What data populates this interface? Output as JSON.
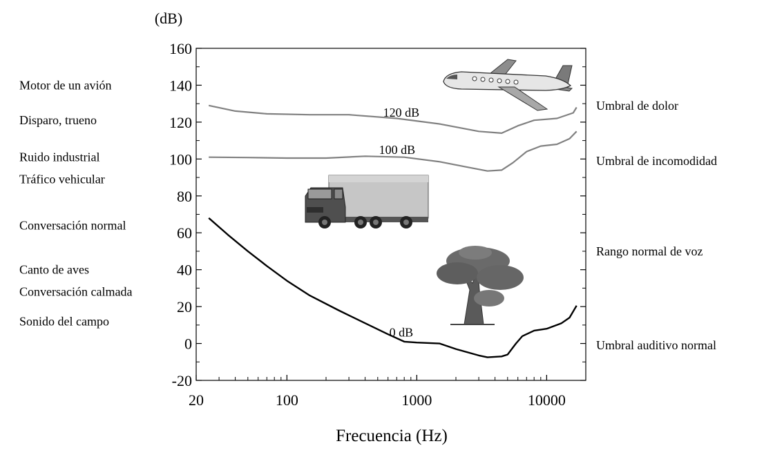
{
  "chart_data": {
    "type": "line",
    "y_unit_label": "(dB)",
    "xlabel": "Frecuencia (Hz)",
    "x_scale": "log",
    "xlim": [
      20,
      20000
    ],
    "ylim": [
      -20,
      160
    ],
    "y_ticks": [
      -20,
      0,
      20,
      40,
      60,
      80,
      100,
      120,
      140,
      160
    ],
    "x_ticks": [
      {
        "value": 20,
        "label": "20"
      },
      {
        "value": 100,
        "label": "100"
      },
      {
        "value": 1000,
        "label": "1000"
      },
      {
        "value": 10000,
        "label": "10000"
      }
    ],
    "series": [
      {
        "name": "120 dB",
        "color": "#808080",
        "points": [
          [
            25,
            129
          ],
          [
            40,
            126
          ],
          [
            70,
            124.5
          ],
          [
            150,
            124
          ],
          [
            300,
            124
          ],
          [
            700,
            122
          ],
          [
            1500,
            119
          ],
          [
            3000,
            115
          ],
          [
            4500,
            114
          ],
          [
            6000,
            118
          ],
          [
            8000,
            121
          ],
          [
            12000,
            122
          ],
          [
            16000,
            125
          ],
          [
            17000,
            128
          ]
        ]
      },
      {
        "name": "100 dB",
        "color": "#808080",
        "points": [
          [
            25,
            101
          ],
          [
            50,
            100.8
          ],
          [
            100,
            100.5
          ],
          [
            200,
            100.5
          ],
          [
            400,
            101.5
          ],
          [
            800,
            101
          ],
          [
            1500,
            98.5
          ],
          [
            2500,
            95.5
          ],
          [
            3500,
            93.5
          ],
          [
            4500,
            94
          ],
          [
            5500,
            98
          ],
          [
            7000,
            104
          ],
          [
            9000,
            107
          ],
          [
            12000,
            108
          ],
          [
            15000,
            111
          ],
          [
            17000,
            115
          ]
        ]
      },
      {
        "name": "0 dB",
        "color": "#000000",
        "points": [
          [
            25,
            68
          ],
          [
            35,
            59
          ],
          [
            50,
            50
          ],
          [
            70,
            42
          ],
          [
            100,
            34
          ],
          [
            150,
            26
          ],
          [
            250,
            18
          ],
          [
            400,
            11
          ],
          [
            600,
            5
          ],
          [
            800,
            1
          ],
          [
            1000,
            0.5
          ],
          [
            1500,
            0
          ],
          [
            2000,
            -3
          ],
          [
            3000,
            -6.5
          ],
          [
            3500,
            -7.5
          ],
          [
            4500,
            -7
          ],
          [
            5000,
            -6
          ],
          [
            5800,
            0
          ],
          [
            6500,
            4
          ],
          [
            8000,
            7
          ],
          [
            10000,
            8
          ],
          [
            13000,
            11
          ],
          [
            15000,
            14
          ],
          [
            16500,
            19
          ],
          [
            17000,
            20.5
          ]
        ]
      }
    ],
    "left_labels": [
      {
        "text": "Motor de un avión",
        "level": 140
      },
      {
        "text": "Disparo, trueno",
        "level": 121
      },
      {
        "text": "Ruido industrial",
        "level": 101
      },
      {
        "text": "Tráfico vehicular",
        "level": 89
      },
      {
        "text": "Conversación normal",
        "level": 64
      },
      {
        "text": "Canto de aves",
        "level": 40
      },
      {
        "text": "Conversación calmada",
        "level": 28
      },
      {
        "text": "Sonido del campo",
        "level": 12
      }
    ],
    "right_labels": [
      {
        "text": "Umbral de dolor",
        "level": 129
      },
      {
        "text": "Umbral de incomodidad",
        "level": 99
      },
      {
        "text": "Rango normal de voz",
        "level": 50
      },
      {
        "text": "Umbral auditivo normal",
        "level": -1
      }
    ],
    "images": [
      {
        "name": "airplane-icon"
      },
      {
        "name": "truck-icon"
      },
      {
        "name": "tree-icon"
      }
    ],
    "grid": false
  }
}
